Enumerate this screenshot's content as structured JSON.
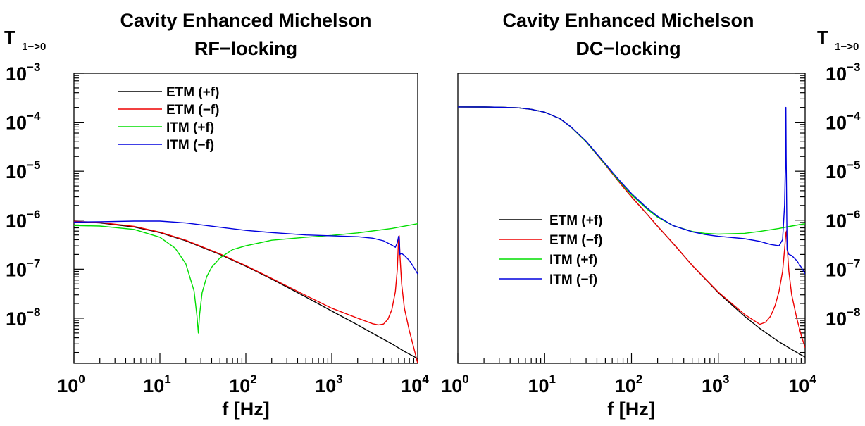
{
  "chart_data": [
    {
      "type": "line",
      "title": "Cavity Enhanced Michelson",
      "subtitle": "RF−locking",
      "xlabel": "f [Hz]",
      "ylabel": "T",
      "ylabel_sub": "1−>0",
      "x_scale": "log",
      "y_scale": "log",
      "xlim": [
        1,
        10000
      ],
      "ylim": [
        1.2e-09,
        0.001
      ],
      "x_ticks": [
        {
          "base": "10",
          "exp": "0"
        },
        {
          "base": "10",
          "exp": "1"
        },
        {
          "base": "10",
          "exp": "2"
        },
        {
          "base": "10",
          "exp": "3"
        },
        {
          "base": "10",
          "exp": "4"
        }
      ],
      "y_ticks": [
        {
          "base": "10",
          "exp": "−8"
        },
        {
          "base": "10",
          "exp": "−7"
        },
        {
          "base": "10",
          "exp": "−6"
        },
        {
          "base": "10",
          "exp": "−5"
        },
        {
          "base": "10",
          "exp": "−4"
        },
        {
          "base": "10",
          "exp": "−3"
        }
      ],
      "y_axis_side": "left",
      "legend_position": "upper-left",
      "series": [
        {
          "name": "ETM (+f)",
          "color": "#000000",
          "x": [
            1,
            2,
            5,
            10,
            20,
            50,
            100,
            200,
            500,
            1000,
            2000,
            3000,
            5000,
            7000,
            10000
          ],
          "y": [
            9.3e-07,
            8.8e-07,
            7.3e-07,
            5.6e-07,
            3.8e-07,
            2e-07,
            1.15e-07,
            6.3e-08,
            2.7e-08,
            1.4e-08,
            7.3e-09,
            4.9e-09,
            3e-09,
            2.1e-09,
            1.5e-09
          ]
        },
        {
          "name": "ETM (−f)",
          "color": "#ee0000",
          "x": [
            1,
            2,
            5,
            10,
            20,
            50,
            100,
            200,
            500,
            1000,
            2000,
            3000,
            3500,
            4000,
            4500,
            5000,
            5500,
            5800,
            6000,
            6100,
            6200,
            6500,
            7000,
            8000,
            9000,
            10000
          ],
          "y": [
            9.5e-07,
            9e-07,
            7.5e-07,
            5.7e-07,
            3.9e-07,
            2.05e-07,
            1.18e-07,
            6.5e-08,
            2.9e-08,
            1.6e-08,
            1e-08,
            7.7e-09,
            7.3e-09,
            7.6e-09,
            9.5e-09,
            1.5e-08,
            3.5e-08,
            1e-07,
            4.5e-07,
            4.8e-07,
            2e-07,
            5e-08,
            1.6e-08,
            5.5e-09,
            2.5e-09,
            1.2e-09
          ]
        },
        {
          "name": "ITM (+f)",
          "color": "#00dd00",
          "x": [
            1,
            2,
            5,
            10,
            15,
            20,
            25,
            27,
            28,
            29,
            31,
            35,
            40,
            50,
            70,
            100,
            200,
            500,
            1000,
            2000,
            5000,
            10000
          ],
          "y": [
            7.8e-07,
            7.6e-07,
            6.5e-07,
            4.5e-07,
            2.7e-07,
            1.3e-07,
            3.6e-08,
            1.1e-08,
            5e-09,
            1.2e-08,
            3.3e-08,
            7e-08,
            1.1e-07,
            1.7e-07,
            2.5e-07,
            3e-07,
            3.9e-07,
            4.5e-07,
            4.9e-07,
            5.5e-07,
            6.8e-07,
            8.5e-07
          ]
        },
        {
          "name": "ITM (−f)",
          "color": "#0000dd",
          "x": [
            1,
            2,
            5,
            10,
            20,
            50,
            100,
            200,
            500,
            1000,
            2000,
            3000,
            4000,
            5000,
            5500,
            5800,
            6000,
            6100,
            6200,
            6500,
            7000,
            8000,
            9000,
            10000
          ],
          "y": [
            9.2e-07,
            9.3e-07,
            9.6e-07,
            9.6e-07,
            8.8e-07,
            7.2e-07,
            6.2e-07,
            5.6e-07,
            5e-07,
            4.8e-07,
            4.6e-07,
            4.3e-07,
            3.8e-07,
            3.1e-07,
            2.8e-07,
            3.5e-07,
            4.7e-07,
            4.5e-07,
            2e-07,
            2.1e-07,
            1.9e-07,
            1.5e-07,
            1.1e-07,
            8e-08
          ]
        }
      ]
    },
    {
      "type": "line",
      "title": "Cavity Enhanced Michelson",
      "subtitle": "DC−locking",
      "xlabel": "f [Hz]",
      "ylabel": "T",
      "ylabel_sub": "1−>0",
      "x_scale": "log",
      "y_scale": "log",
      "xlim": [
        1,
        10000
      ],
      "ylim": [
        1.2e-09,
        0.001
      ],
      "x_ticks": [
        {
          "base": "10",
          "exp": "0"
        },
        {
          "base": "10",
          "exp": "1"
        },
        {
          "base": "10",
          "exp": "2"
        },
        {
          "base": "10",
          "exp": "3"
        },
        {
          "base": "10",
          "exp": "4"
        }
      ],
      "y_ticks": [
        {
          "base": "10",
          "exp": "−8"
        },
        {
          "base": "10",
          "exp": "−7"
        },
        {
          "base": "10",
          "exp": "−6"
        },
        {
          "base": "10",
          "exp": "−5"
        },
        {
          "base": "10",
          "exp": "−4"
        },
        {
          "base": "10",
          "exp": "−3"
        }
      ],
      "y_axis_side": "right",
      "legend_position": "center-left",
      "series": [
        {
          "name": "ETM (+f)",
          "color": "#000000",
          "x": [
            1,
            2,
            3,
            5,
            7,
            10,
            15,
            20,
            30,
            50,
            70,
            100,
            150,
            200,
            300,
            500,
            1000,
            2000,
            3000,
            5000,
            7000,
            10000
          ],
          "y": [
            0.000205,
            0.000204,
            0.000202,
            0.000196,
            0.000183,
            0.00016,
            0.000118,
            8e-05,
            4e-05,
            1.35e-05,
            6.4e-06,
            3e-06,
            1.35e-06,
            7.5e-07,
            3.4e-07,
            1.2e-07,
            3.3e-08,
            1.1e-08,
            6.2e-09,
            3.3e-09,
            2.3e-09,
            1.6e-09
          ]
        },
        {
          "name": "ETM (−f)",
          "color": "#ee0000",
          "x": [
            1,
            2,
            3,
            5,
            7,
            10,
            15,
            20,
            30,
            50,
            70,
            100,
            150,
            200,
            300,
            500,
            1000,
            2000,
            3000,
            3500,
            4000,
            4500,
            5000,
            5500,
            5800,
            6000,
            6100,
            6200,
            6500,
            7000,
            8000,
            9000,
            10000
          ],
          "y": [
            0.000205,
            0.000204,
            0.000202,
            0.000196,
            0.000183,
            0.00016,
            0.000118,
            8e-05,
            4e-05,
            1.35e-05,
            6.4e-06,
            3e-06,
            1.35e-06,
            7.5e-07,
            3.4e-07,
            1.2e-07,
            3.4e-08,
            1.2e-08,
            7.5e-09,
            8.3e-09,
            1.1e-08,
            1.8e-08,
            3.5e-08,
            9e-08,
            2.5e-07,
            5.5e-07,
            6e-07,
            3e-07,
            9e-08,
            3e-08,
            1e-08,
            4.5e-09,
            2.5e-09
          ]
        },
        {
          "name": "ITM (+f)",
          "color": "#00dd00",
          "x": [
            1,
            2,
            3,
            5,
            7,
            10,
            15,
            20,
            30,
            50,
            70,
            100,
            150,
            200,
            300,
            500,
            700,
            1000,
            2000,
            3000,
            5000,
            7000,
            10000
          ],
          "y": [
            0.000205,
            0.000204,
            0.000202,
            0.000196,
            0.000183,
            0.00016,
            0.000118,
            8e-05,
            4e-05,
            1.38e-05,
            6.7e-06,
            3.3e-06,
            1.7e-06,
            1.15e-06,
            7.8e-07,
            5.9e-07,
            5.4e-07,
            5.2e-07,
            5.4e-07,
            5.9e-07,
            6.8e-07,
            7.6e-07,
            8.5e-07
          ]
        },
        {
          "name": "ITM (−f)",
          "color": "#0000dd",
          "x": [
            1,
            2,
            3,
            5,
            7,
            10,
            15,
            20,
            30,
            50,
            70,
            100,
            150,
            200,
            300,
            500,
            700,
            1000,
            2000,
            3000,
            4000,
            5000,
            5500,
            5800,
            5950,
            6000,
            6050,
            6200,
            6500,
            7000,
            8000,
            9000,
            10000
          ],
          "y": [
            0.000205,
            0.000204,
            0.000202,
            0.000196,
            0.000183,
            0.00016,
            0.000118,
            8.1e-05,
            4.1e-05,
            1.42e-05,
            7e-06,
            3.5e-06,
            1.8e-06,
            1.2e-06,
            7.8e-07,
            5.8e-07,
            5.1e-07,
            4.7e-07,
            4.2e-07,
            3.7e-07,
            3.2e-07,
            3e-07,
            4e-07,
            2e-06,
            2e-05,
            0.0002,
            2e-05,
            2.5e-07,
            2e-07,
            1.9e-07,
            1.5e-07,
            1.1e-07,
            8e-08
          ]
        }
      ]
    }
  ]
}
